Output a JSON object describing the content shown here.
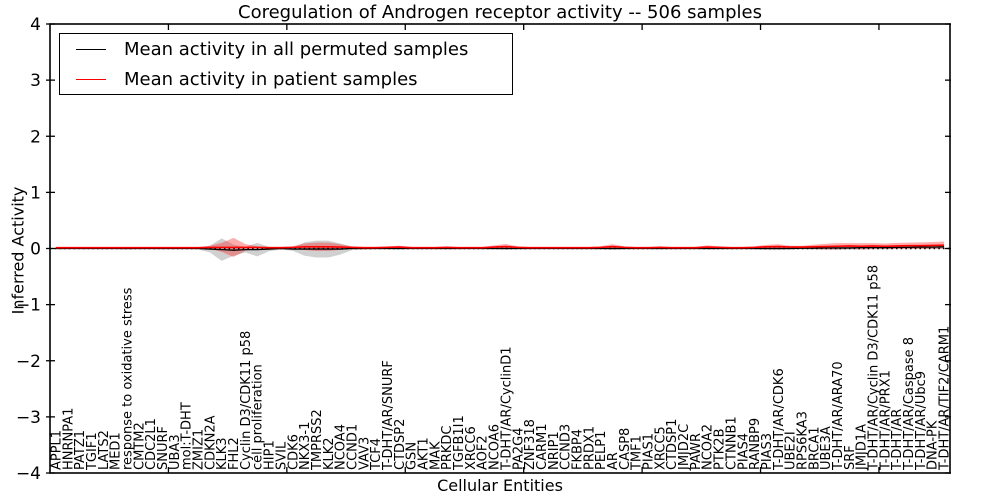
{
  "chart_data": {
    "type": "line",
    "title": "Coregulation of Androgen receptor activity -- 506 samples",
    "xlabel": "Cellular Entities",
    "ylabel": "Inferred Activity",
    "ylim": [
      -4,
      4
    ],
    "ytick_values": [
      4,
      3,
      2,
      1,
      0,
      -1,
      -2,
      -3,
      -4
    ],
    "ytick_labels": [
      "4",
      "3",
      "2",
      "1",
      "0",
      "−1",
      "−2",
      "−3",
      "−4"
    ],
    "x_major_tick_step": 10,
    "grid": false,
    "zero_line": {
      "style": "dotted",
      "color": "#000000",
      "y": 0
    },
    "legend": {
      "position": "upper left"
    },
    "categories": [
      "APPL1",
      "HNRNPA1",
      "PATZ1",
      "TGIF1",
      "LATS2",
      "MED1",
      "response to oxidative stress",
      "CMTM2",
      "CDC2L1",
      "SNURF",
      "UBA3",
      "mol:T-DHT",
      "ZMIZ1",
      "CDKN2A",
      "KLK3",
      "FHL2",
      "Cyclin D3/CDK11 p58",
      "cell proliferation",
      "HIP1",
      "SVIL",
      "CDK6",
      "NKX3-1",
      "TMPRSS2",
      "KLK2",
      "NCOA4",
      "CCND1",
      "VAV3",
      "TCF4",
      "T-DHT/AR/SNURF",
      "CTDSP2",
      "GSN",
      "AKT1",
      "MAK",
      "PRKDC",
      "TGFB1I1",
      "XRCC6",
      "AOF2",
      "NCOA6",
      "T-DHT/AR/CyclinD1",
      "PA2G4",
      "ZNF318",
      "CARM1",
      "NRIP1",
      "CCND3",
      "FKBP4",
      "PRDX1",
      "PELP1",
      "AR",
      "CASP8",
      "TMF1",
      "PIAS1",
      "XRCC5",
      "CTDSP1",
      "JMJD2C",
      "PAWR",
      "NCOA2",
      "PTK2B",
      "CTNNB1",
      "PIAS4",
      "RANBP9",
      "PIAS3",
      "T-DHT/AR/CDK6",
      "UBE2I",
      "RPS6KA3",
      "BRCA1",
      "UBE3A",
      "T-DHT/AR/ARA70",
      "SRF",
      "JMJD1A",
      "T-DHT/AR/Cyclin D3/CDK11 p58",
      "T-DHT/AR/PRX1",
      "T-DHT/AR",
      "T-DHT/AR/Caspase 8",
      "T-DHT/AR/Ubc9",
      "DNA-PK",
      "T-DHT/AR/TIF2/CARM1"
    ],
    "series": [
      {
        "name": "Mean activity in all permuted samples",
        "color": "#000000",
        "values": [
          0,
          0,
          0,
          0,
          0,
          0,
          0,
          0,
          0,
          0,
          0,
          0,
          0,
          -0.01,
          -0.02,
          -0.03,
          -0.02,
          -0.02,
          -0.01,
          0,
          -0.01,
          -0.01,
          -0.01,
          -0.01,
          -0.01,
          0,
          0,
          0,
          0,
          0,
          0,
          0,
          0,
          0,
          0,
          0,
          0,
          0,
          0,
          0,
          0,
          0,
          0,
          0,
          0,
          0,
          0,
          0,
          0,
          0,
          0,
          0,
          0,
          0,
          0,
          0,
          0,
          0,
          0,
          0,
          0,
          0,
          0,
          0.005,
          0.005,
          0.01,
          0.01,
          0.01,
          0.015,
          0.015,
          0.015,
          0.02,
          0.02,
          0.025,
          0.025,
          0.03
        ]
      },
      {
        "name": "Mean activity in patient samples",
        "color": "#ff0000",
        "values": [
          0.015,
          0.015,
          0.015,
          0.015,
          0.015,
          0.015,
          0.015,
          0.015,
          0.015,
          0.015,
          0.015,
          0.015,
          0.015,
          0.02,
          0.02,
          0.02,
          0.02,
          0.02,
          0.015,
          0.015,
          0.02,
          0.03,
          0.03,
          0.03,
          0.025,
          0.02,
          0.015,
          0.015,
          0.02,
          0.025,
          0.015,
          0.015,
          0.015,
          0.02,
          0.015,
          0.015,
          0.015,
          0.025,
          0.035,
          0.02,
          0.015,
          0.015,
          0.015,
          0.015,
          0.015,
          0.015,
          0.02,
          0.035,
          0.02,
          0.015,
          0.015,
          0.02,
          0.015,
          0.015,
          0.015,
          0.025,
          0.02,
          0.015,
          0.015,
          0.02,
          0.03,
          0.035,
          0.025,
          0.025,
          0.03,
          0.035,
          0.04,
          0.045,
          0.04,
          0.045,
          0.04,
          0.045,
          0.05,
          0.05,
          0.055,
          0.06
        ]
      }
    ],
    "bands": [
      {
        "name": "permuted-samples-spread-band",
        "center_series": 0,
        "color": "rgba(110,110,110,0.32)",
        "half_widths": [
          0.012,
          0.012,
          0.012,
          0.012,
          0.012,
          0.012,
          0.02,
          0.012,
          0.012,
          0.012,
          0.012,
          0.012,
          0.015,
          0.06,
          0.2,
          0.1,
          0.05,
          0.12,
          0.04,
          0.02,
          0.03,
          0.12,
          0.15,
          0.15,
          0.1,
          0.03,
          0.02,
          0.012,
          0.015,
          0.02,
          0.012,
          0.012,
          0.012,
          0.015,
          0.012,
          0.012,
          0.012,
          0.015,
          0.025,
          0.015,
          0.012,
          0.012,
          0.012,
          0.012,
          0.012,
          0.012,
          0.015,
          0.03,
          0.015,
          0.012,
          0.012,
          0.015,
          0.012,
          0.012,
          0.012,
          0.02,
          0.015,
          0.012,
          0.012,
          0.015,
          0.03,
          0.03,
          0.02,
          0.02,
          0.025,
          0.03,
          0.035,
          0.03,
          0.035,
          0.03,
          0.03,
          0.03,
          0.035,
          0.03,
          0.035,
          0.04
        ]
      },
      {
        "name": "patient-samples-spread-band",
        "center_series": 1,
        "color": "rgba(255,20,20,0.35)",
        "half_widths": [
          0.01,
          0.01,
          0.01,
          0.01,
          0.01,
          0.01,
          0.01,
          0.01,
          0.01,
          0.01,
          0.01,
          0.01,
          0.01,
          0.03,
          0.08,
          0.17,
          0.06,
          0.02,
          0.015,
          0.015,
          0.02,
          0.06,
          0.075,
          0.075,
          0.05,
          0.02,
          0.015,
          0.015,
          0.02,
          0.025,
          0.015,
          0.01,
          0.01,
          0.02,
          0.01,
          0.01,
          0.01,
          0.03,
          0.045,
          0.02,
          0.01,
          0.01,
          0.01,
          0.01,
          0.01,
          0.01,
          0.02,
          0.04,
          0.02,
          0.01,
          0.01,
          0.02,
          0.01,
          0.01,
          0.015,
          0.03,
          0.02,
          0.012,
          0.012,
          0.02,
          0.035,
          0.04,
          0.025,
          0.025,
          0.04,
          0.05,
          0.055,
          0.05,
          0.055,
          0.05,
          0.05,
          0.055,
          0.055,
          0.06,
          0.06,
          0.065
        ]
      }
    ]
  }
}
